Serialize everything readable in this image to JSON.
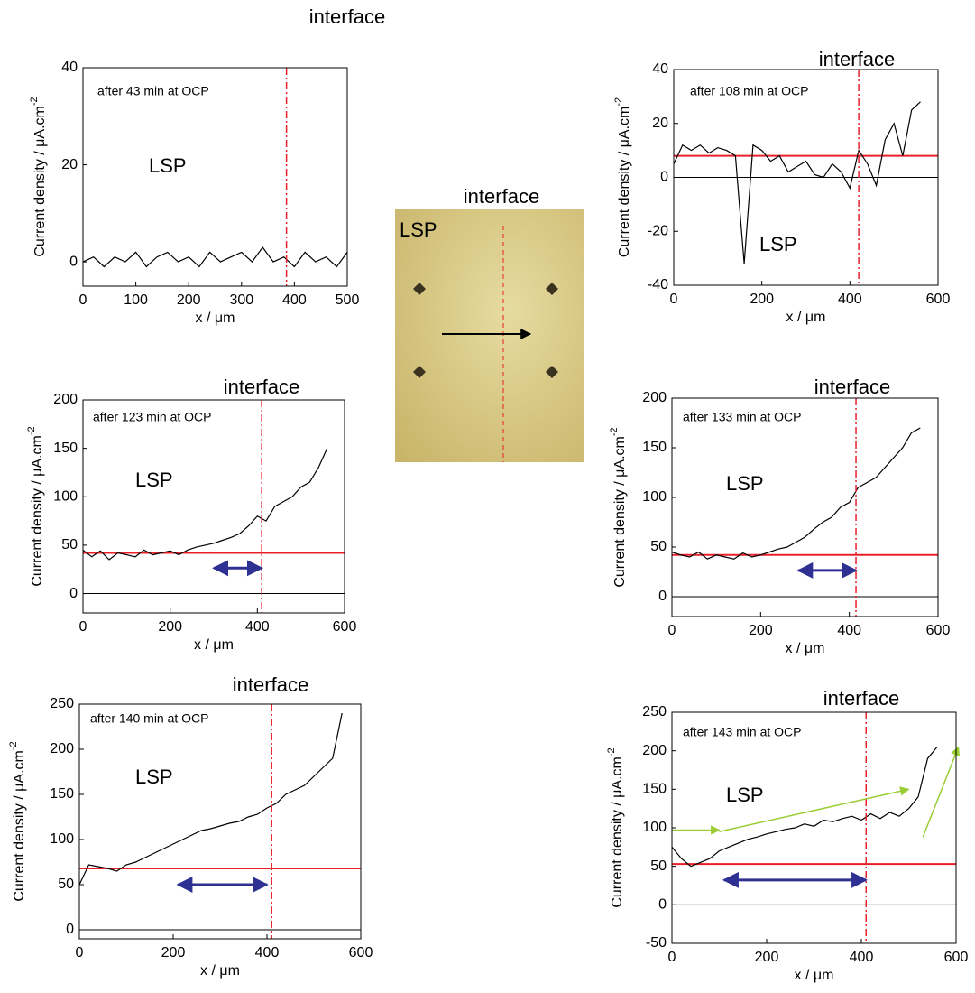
{
  "chart_data": [
    {
      "type": "line",
      "annotation": "after 43 min at OCP",
      "region_label": "LSP",
      "interface_label": "interface",
      "x_label": "x / μm",
      "y_label": "Current density / μA.cm",
      "y_label_sup": "-2",
      "xlim": [
        0,
        500
      ],
      "ylim": [
        -5,
        40
      ],
      "xticks": [
        0,
        100,
        200,
        300,
        400,
        500
      ],
      "yticks": [
        0,
        20,
        40
      ],
      "x": [
        0,
        20,
        40,
        60,
        80,
        100,
        120,
        140,
        160,
        180,
        200,
        220,
        240,
        260,
        280,
        300,
        320,
        340,
        360,
        380,
        400,
        420,
        440,
        460,
        480,
        500
      ],
      "series": [
        {
          "color": "#000000",
          "values": [
            0,
            1,
            -1,
            1,
            0,
            2,
            -1,
            1,
            2,
            0,
            1,
            -1,
            2,
            0,
            1,
            2,
            0,
            3,
            0,
            1,
            -1,
            2,
            0,
            1,
            -1,
            2
          ]
        }
      ],
      "interface_x": 385,
      "interface_color": "#e8202a",
      "zero_line": false
    },
    {
      "type": "line",
      "annotation": "after 108 min at OCP",
      "region_label": "LSP",
      "interface_label": "interface",
      "x_label": "x / μm",
      "y_label": "Current density / μA.cm",
      "y_label_sup": "-2",
      "xlim": [
        0,
        600
      ],
      "ylim": [
        -40,
        40
      ],
      "xticks": [
        0,
        200,
        400,
        600
      ],
      "yticks": [
        -40,
        -20,
        0,
        20,
        40
      ],
      "x": [
        0,
        20,
        40,
        60,
        80,
        100,
        120,
        140,
        160,
        180,
        200,
        220,
        240,
        260,
        280,
        300,
        320,
        340,
        360,
        380,
        400,
        420,
        440,
        460,
        480,
        500,
        520,
        540,
        560
      ],
      "series": [
        {
          "color": "#000000",
          "values": [
            5,
            12,
            10,
            12,
            9,
            11,
            10,
            8,
            -32,
            12,
            10,
            6,
            8,
            2,
            4,
            6,
            1,
            0,
            5,
            2,
            -4,
            10,
            5,
            -3,
            14,
            20,
            8,
            25,
            28
          ]
        }
      ],
      "reference_level": 8,
      "reference_color": "#e8202a",
      "interface_x": 420,
      "interface_color": "#e8202a",
      "zero_line": true
    },
    {
      "type": "line",
      "annotation": "after 123 min at OCP",
      "region_label": "LSP",
      "interface_label": "interface",
      "x_label": "x / μm",
      "y_label": "Current density / μA.cm",
      "y_label_sup": "-2",
      "xlim": [
        0,
        600
      ],
      "ylim": [
        -20,
        200
      ],
      "xticks": [
        0,
        200,
        400,
        600
      ],
      "yticks": [
        0,
        50,
        100,
        150,
        200
      ],
      "x": [
        0,
        20,
        40,
        60,
        80,
        100,
        120,
        140,
        160,
        180,
        200,
        220,
        240,
        260,
        280,
        300,
        320,
        340,
        360,
        380,
        400,
        420,
        440,
        460,
        480,
        500,
        520,
        540,
        560
      ],
      "series": [
        {
          "color": "#000000",
          "values": [
            45,
            38,
            44,
            35,
            42,
            40,
            38,
            45,
            40,
            42,
            44,
            40,
            45,
            48,
            50,
            52,
            55,
            58,
            62,
            70,
            80,
            75,
            90,
            95,
            100,
            110,
            115,
            130,
            150
          ]
        }
      ],
      "reference_level": 42,
      "reference_color": "#e8202a",
      "interface_x": 410,
      "interface_color": "#e8202a",
      "arrow_x": [
        300,
        410
      ],
      "arrow_color": "#2e3192",
      "zero_line": true
    },
    {
      "type": "line",
      "annotation": "after 133 min at OCP",
      "region_label": "LSP",
      "interface_label": "interface",
      "x_label": "x / μm",
      "y_label": "Current density / μA.cm",
      "y_label_sup": "-2",
      "xlim": [
        0,
        600
      ],
      "ylim": [
        -20,
        200
      ],
      "xticks": [
        0,
        200,
        400,
        600
      ],
      "yticks": [
        0,
        50,
        100,
        150,
        200
      ],
      "x": [
        0,
        20,
        40,
        60,
        80,
        100,
        120,
        140,
        160,
        180,
        200,
        220,
        240,
        260,
        280,
        300,
        320,
        340,
        360,
        380,
        400,
        420,
        440,
        460,
        480,
        500,
        520,
        540,
        560
      ],
      "series": [
        {
          "color": "#000000",
          "values": [
            45,
            42,
            40,
            45,
            38,
            42,
            40,
            38,
            44,
            40,
            42,
            45,
            48,
            50,
            55,
            60,
            68,
            75,
            80,
            90,
            95,
            110,
            115,
            120,
            130,
            140,
            150,
            165,
            170
          ]
        }
      ],
      "reference_level": 42,
      "reference_color": "#e8202a",
      "interface_x": 415,
      "interface_color": "#e8202a",
      "arrow_x": [
        285,
        415
      ],
      "arrow_color": "#2e3192",
      "zero_line": true
    },
    {
      "type": "line",
      "annotation": "after 140 min at OCP",
      "region_label": "LSP",
      "interface_label": "interface",
      "x_label": "x / μm",
      "y_label": "Current density / μA.cm",
      "y_label_sup": "-2",
      "xlim": [
        0,
        600
      ],
      "ylim": [
        -10,
        250
      ],
      "xticks": [
        0,
        200,
        400,
        600
      ],
      "yticks": [
        0,
        50,
        100,
        150,
        200,
        250
      ],
      "x": [
        0,
        20,
        40,
        60,
        80,
        100,
        120,
        140,
        160,
        180,
        200,
        220,
        240,
        260,
        280,
        300,
        320,
        340,
        360,
        380,
        400,
        420,
        440,
        460,
        480,
        500,
        520,
        540,
        560
      ],
      "series": [
        {
          "color": "#000000",
          "values": [
            50,
            72,
            70,
            68,
            65,
            72,
            75,
            80,
            85,
            90,
            95,
            100,
            105,
            110,
            112,
            115,
            118,
            120,
            125,
            128,
            135,
            140,
            150,
            155,
            160,
            170,
            180,
            190,
            240
          ]
        }
      ],
      "reference_level": 68,
      "reference_color": "#e8202a",
      "interface_x": 410,
      "interface_color": "#e8202a",
      "arrow_x": [
        210,
        400
      ],
      "arrow_color": "#2e3192",
      "zero_line": true
    },
    {
      "type": "line",
      "annotation": "after 143 min at OCP",
      "region_label": "LSP",
      "interface_label": "interface",
      "x_label": "x / μm",
      "y_label": "Current density / μA.cm",
      "y_label_sup": "-2",
      "xlim": [
        0,
        600
      ],
      "ylim": [
        -50,
        250
      ],
      "xticks": [
        0,
        200,
        400,
        600
      ],
      "yticks": [
        -50,
        0,
        50,
        100,
        150,
        200,
        250
      ],
      "x": [
        0,
        20,
        40,
        60,
        80,
        100,
        120,
        140,
        160,
        180,
        200,
        220,
        240,
        260,
        280,
        300,
        320,
        340,
        360,
        380,
        400,
        420,
        440,
        460,
        480,
        500,
        520,
        540,
        560
      ],
      "series": [
        {
          "color": "#000000",
          "values": [
            75,
            60,
            50,
            55,
            60,
            70,
            75,
            80,
            85,
            88,
            92,
            95,
            98,
            100,
            105,
            102,
            110,
            108,
            112,
            115,
            110,
            118,
            112,
            120,
            115,
            125,
            140,
            190,
            205
          ]
        }
      ],
      "reference_level": 53,
      "reference_color": "#e8202a",
      "interface_x": 410,
      "interface_color": "#e8202a",
      "arrow_x": [
        110,
        410
      ],
      "arrow_color": "#2e3192",
      "zero_line": true,
      "trend_arrows": [
        {
          "x": [
            0,
            100
          ],
          "y": [
            97,
            97
          ]
        },
        {
          "x": [
            100,
            500
          ],
          "y": [
            95,
            150
          ]
        },
        {
          "x": [
            530,
            605
          ],
          "y": [
            88,
            205
          ]
        }
      ],
      "trend_color": "#9acd32"
    }
  ],
  "image": {
    "label": "LSP",
    "interface_label": "interface"
  }
}
